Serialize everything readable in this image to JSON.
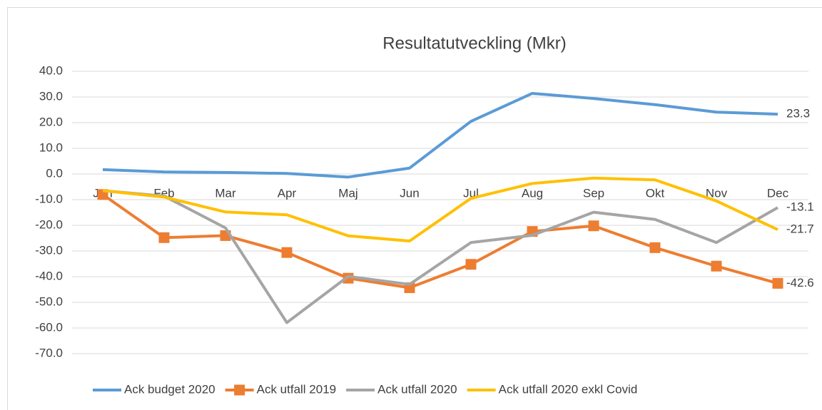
{
  "chart_data": {
    "type": "line",
    "title": "Resultatutveckling (Mkr)",
    "categories": [
      "Jan",
      "Feb",
      "Mar",
      "Apr",
      "Maj",
      "Jun",
      "Jul",
      "Aug",
      "Sep",
      "Okt",
      "Nov",
      "Dec"
    ],
    "series": [
      {
        "name": "Ack budget 2020",
        "color": "#5b9bd5",
        "marker": false,
        "values": [
          1.7,
          0.8,
          0.6,
          0.2,
          -1.2,
          2.3,
          20.5,
          31.4,
          29.4,
          27.0,
          24.1,
          23.3
        ],
        "value_labels": [
          null,
          null,
          null,
          null,
          null,
          null,
          null,
          null,
          null,
          null,
          null,
          "23.3"
        ]
      },
      {
        "name": "Ack utfall 2019",
        "color": "#ed7d31",
        "marker": true,
        "values": [
          -8.0,
          -24.8,
          -24.0,
          -30.6,
          -40.6,
          -44.3,
          -35.2,
          -22.4,
          -20.2,
          -28.7,
          -35.9,
          -42.6
        ],
        "value_labels": [
          null,
          null,
          null,
          null,
          null,
          null,
          null,
          null,
          null,
          null,
          null,
          "-42.6"
        ]
      },
      {
        "name": "Ack utfall 2020",
        "color": "#a5a5a5",
        "marker": false,
        "values": [
          -6.5,
          -8.6,
          -21.0,
          -57.9,
          -39.9,
          -43.0,
          -26.7,
          -23.9,
          -14.9,
          -17.7,
          -26.7,
          -13.1
        ],
        "value_labels": [
          null,
          null,
          null,
          null,
          null,
          null,
          null,
          null,
          null,
          null,
          null,
          "-13.1"
        ]
      },
      {
        "name": "Ack utfall 2020 exkl Covid",
        "color": "#ffc000",
        "marker": false,
        "values": [
          -6.5,
          -9.0,
          -14.8,
          -15.9,
          -24.1,
          -26.1,
          -9.5,
          -3.7,
          -1.6,
          -2.3,
          -10.5,
          -21.7
        ],
        "value_labels": [
          null,
          null,
          null,
          null,
          null,
          null,
          null,
          null,
          null,
          null,
          null,
          "-21.7"
        ]
      }
    ],
    "ylim": [
      -70,
      40
    ],
    "yticks": [
      {
        "value": -70,
        "label": "-70.0"
      },
      {
        "value": -60,
        "label": "-60.0"
      },
      {
        "value": -50,
        "label": "-50.0"
      },
      {
        "value": -40,
        "label": "-40.0"
      },
      {
        "value": -30,
        "label": "-30.0"
      },
      {
        "value": -20,
        "label": "-20.0"
      },
      {
        "value": -10,
        "label": "-10.0"
      },
      {
        "value": 0,
        "label": "0.0"
      },
      {
        "value": 10,
        "label": "10.0"
      },
      {
        "value": 20,
        "label": "20.0"
      },
      {
        "value": 30,
        "label": "30.0"
      },
      {
        "value": 40,
        "label": "40.0"
      }
    ],
    "grid": true,
    "legend": "bottom"
  }
}
